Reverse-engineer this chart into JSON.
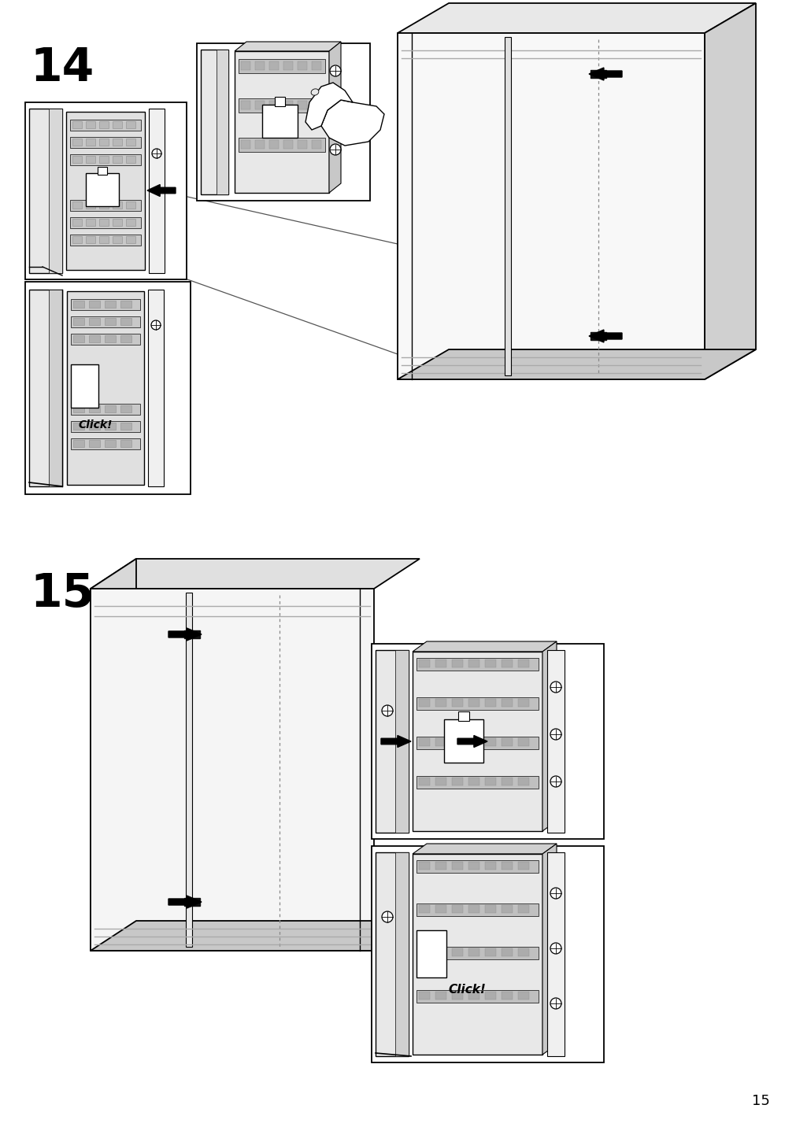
{
  "page_number": "15",
  "step14_label": "14",
  "step15_label": "15",
  "click_text": "Click!",
  "bg": "#ffffff",
  "lc": "#000000",
  "gray1": "#f0f0f0",
  "gray2": "#d8d8d8",
  "gray3": "#b0b0b0",
  "step_fs": 42,
  "page_fs": 13,
  "click_fs": 10
}
